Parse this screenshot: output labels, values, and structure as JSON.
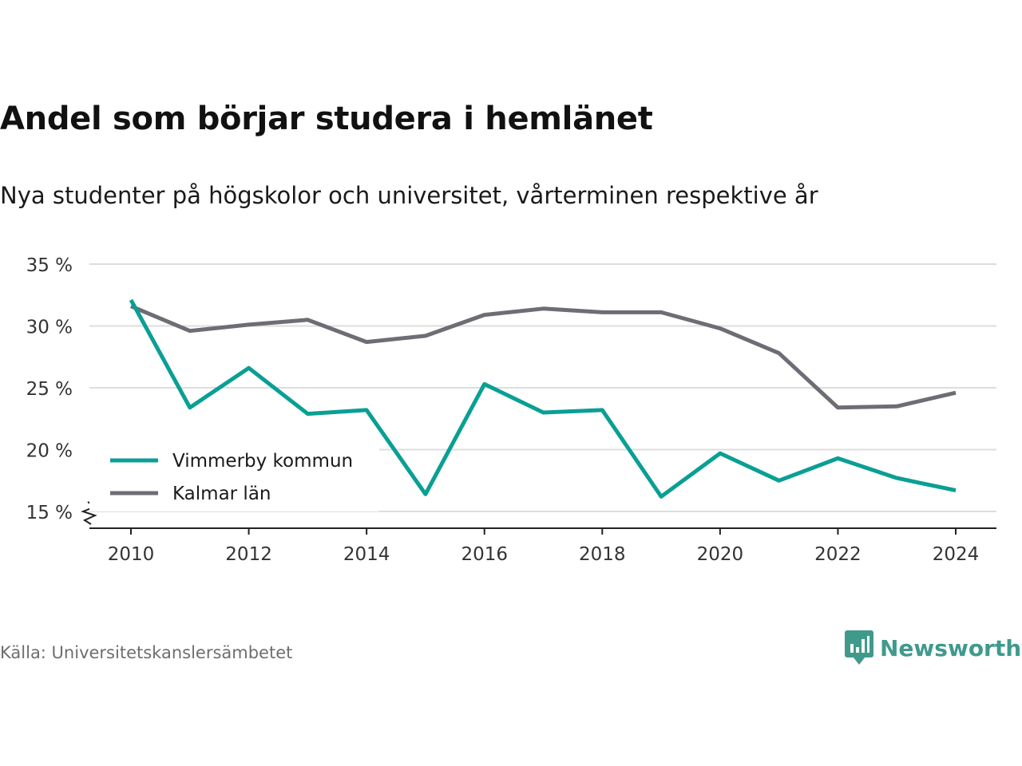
{
  "header": {
    "title": "Andel som börjar studera i hemlänet",
    "subtitle": "Nya studenter på högskolor och universitet, vårterminen respektive år"
  },
  "footer": {
    "source": "Källa: Universitetskanslersämbetet",
    "brand": "Newsworthy",
    "brand_color": "#3f9a8c",
    "brand_icon": "bar-chart-speech-bubble-icon"
  },
  "chart_data": {
    "type": "line",
    "x": [
      2010,
      2011,
      2012,
      2013,
      2014,
      2015,
      2016,
      2017,
      2018,
      2019,
      2020,
      2021,
      2022,
      2023,
      2024
    ],
    "xticks": [
      2010,
      2012,
      2014,
      2016,
      2018,
      2020,
      2022,
      2024
    ],
    "yticks": [
      15,
      20,
      25,
      30,
      35
    ],
    "ytick_labels": [
      "15 %",
      "20 %",
      "25 %",
      "30 %",
      "35 %"
    ],
    "ylim": [
      15,
      35
    ],
    "y_axis_break": true,
    "grid": true,
    "legend_position": "bottom-left",
    "series": [
      {
        "name": "Vimmerby kommun",
        "color": "#0a9f94",
        "values": [
          32.1,
          23.4,
          26.6,
          22.9,
          23.2,
          16.4,
          25.3,
          23.0,
          23.2,
          16.2,
          19.7,
          17.5,
          19.3,
          17.7,
          16.7
        ]
      },
      {
        "name": "Kalmar län",
        "color": "#6e6d75",
        "values": [
          31.6,
          29.6,
          30.1,
          30.5,
          28.7,
          29.2,
          30.9,
          31.4,
          31.1,
          31.1,
          29.8,
          27.8,
          23.4,
          23.5,
          24.6
        ]
      }
    ]
  }
}
